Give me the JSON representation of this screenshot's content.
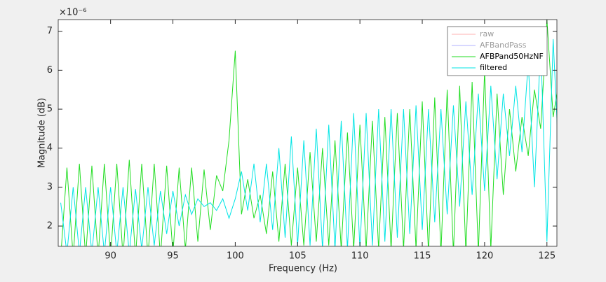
{
  "chart_data": {
    "type": "line",
    "xlabel": "Frequency (Hz)",
    "ylabel": "Magnitude (dB)",
    "y_exponent": "×10⁻⁶",
    "xlim": [
      85.8,
      125.8
    ],
    "ylim": [
      1.48,
      7.3
    ],
    "xticks": [
      90,
      95,
      100,
      105,
      110,
      115,
      120,
      125
    ],
    "yticks": [
      2,
      3,
      4,
      5,
      6,
      7
    ],
    "grid": false,
    "legend": "top-right",
    "x": [
      86,
      86.5,
      87,
      87.5,
      88,
      88.5,
      89,
      89.5,
      90,
      90.5,
      91,
      91.5,
      92,
      92.5,
      93,
      93.5,
      94,
      94.5,
      95,
      95.5,
      96,
      96.5,
      97,
      97.5,
      98,
      98.5,
      99,
      99.5,
      100,
      100.5,
      101,
      101.5,
      102,
      102.5,
      103,
      103.5,
      104,
      104.5,
      105,
      105.5,
      106,
      106.5,
      107,
      107.5,
      108,
      108.5,
      109,
      109.5,
      110,
      110.5,
      111,
      111.5,
      112,
      112.5,
      113,
      113.5,
      114,
      114.5,
      115,
      115.5,
      116,
      116.5,
      117,
      117.5,
      118,
      118.5,
      119,
      119.5,
      120,
      120.5,
      121,
      121.5,
      122,
      122.5,
      123,
      123.5,
      124,
      124.5,
      125,
      125.5,
      126
    ],
    "series": [
      {
        "name": "raw",
        "color": "#ffb0b0",
        "visible": false,
        "values": [
          null,
          null,
          null,
          null,
          null,
          null,
          null,
          null,
          null,
          null,
          null,
          null,
          null,
          null,
          null,
          null,
          null,
          null,
          null,
          null,
          null,
          null,
          null,
          null,
          null,
          null,
          null,
          null,
          null,
          null,
          null,
          null,
          null,
          null,
          null,
          null,
          null,
          null,
          null,
          null,
          null,
          null,
          null,
          null,
          null,
          null,
          null,
          null,
          null,
          null,
          null,
          null,
          null,
          null,
          null,
          null,
          null,
          null,
          null,
          null,
          null,
          null,
          null,
          null,
          null,
          null,
          null,
          null,
          null,
          null,
          null,
          null,
          null,
          null,
          null,
          null,
          null,
          null,
          null,
          null,
          null
        ]
      },
      {
        "name": "AFBandPass",
        "color": "#b0b0ff",
        "visible": false,
        "values": [
          null,
          null,
          null,
          null,
          null,
          null,
          null,
          null,
          null,
          null,
          null,
          null,
          null,
          null,
          null,
          null,
          null,
          null,
          null,
          null,
          null,
          null,
          null,
          null,
          null,
          null,
          null,
          null,
          null,
          null,
          null,
          null,
          null,
          null,
          null,
          null,
          null,
          null,
          null,
          null,
          null,
          null,
          null,
          null,
          null,
          null,
          null,
          null,
          null,
          null,
          null,
          null,
          null,
          null,
          null,
          null,
          null,
          null,
          null,
          null,
          null,
          null,
          null,
          null,
          null,
          null,
          null,
          null,
          null,
          null,
          null,
          null,
          null,
          null,
          null,
          null,
          null,
          null,
          null,
          null,
          null
        ]
      },
      {
        "name": "AFBPand50HzNF",
        "color": "#22dd22",
        "visible": true,
        "values": [
          1.2,
          3.5,
          1.2,
          3.6,
          1.2,
          3.55,
          1.2,
          3.6,
          1.2,
          3.6,
          1.2,
          3.7,
          1.2,
          3.6,
          1.2,
          3.6,
          1.2,
          3.55,
          1.3,
          3.5,
          1.4,
          3.5,
          1.6,
          3.45,
          1.9,
          3.3,
          2.9,
          4.2,
          6.5,
          2.3,
          3.2,
          2.2,
          2.8,
          1.8,
          3.4,
          1.6,
          3.6,
          1.5,
          3.5,
          1.5,
          3.9,
          1.6,
          4.0,
          1.5,
          4.2,
          1.4,
          4.4,
          1.4,
          4.6,
          1.4,
          4.7,
          1.4,
          4.8,
          1.4,
          4.9,
          1.4,
          5.0,
          1.4,
          5.2,
          1.3,
          5.3,
          1.3,
          5.5,
          1.3,
          5.6,
          1.3,
          5.7,
          1.3,
          6.0,
          1.4,
          5.4,
          2.8,
          5.0,
          3.4,
          4.8,
          3.8,
          5.5,
          4.5,
          7.3,
          4.8,
          5.8
        ]
      },
      {
        "name": "filtered",
        "color": "#00e5e5",
        "visible": true,
        "values": [
          2.6,
          1.3,
          3.0,
          1.3,
          3.0,
          1.3,
          3.0,
          1.3,
          3.0,
          1.3,
          3.0,
          1.3,
          2.95,
          1.4,
          3.0,
          1.5,
          2.9,
          1.8,
          2.9,
          2.0,
          2.8,
          2.3,
          2.7,
          2.5,
          2.6,
          2.4,
          2.7,
          2.2,
          2.7,
          3.4,
          2.4,
          3.6,
          2.1,
          3.6,
          1.9,
          4.0,
          1.7,
          4.3,
          1.5,
          4.2,
          1.5,
          4.5,
          1.4,
          4.6,
          1.4,
          4.7,
          1.4,
          4.9,
          1.4,
          4.9,
          1.5,
          5.0,
          1.6,
          5.0,
          1.7,
          5.0,
          1.8,
          5.1,
          1.9,
          5.0,
          2.1,
          5.0,
          2.3,
          5.1,
          2.5,
          5.2,
          2.8,
          5.4,
          2.9,
          5.6,
          3.2,
          5.4,
          3.8,
          5.6,
          3.9,
          6.2,
          3.0,
          6.7,
          1.6,
          6.8,
          3.4
        ]
      }
    ]
  }
}
